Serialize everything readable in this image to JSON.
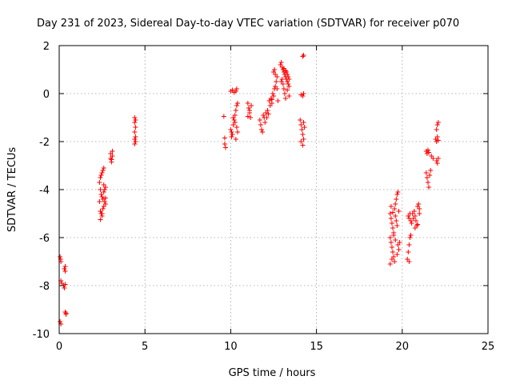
{
  "chart_data": {
    "type": "scatter",
    "title": "Day 231 of 2023, Sidereal Day-to-day VTEC variation (SDTVAR) for receiver p070",
    "xlabel": "GPS time / hours",
    "ylabel": "SDTVAR / TECUs",
    "xlim": [
      0,
      25
    ],
    "ylim": [
      -10,
      2
    ],
    "xticks": [
      "0",
      "5",
      "10",
      "15",
      "20",
      "25"
    ],
    "yticks": [
      "-10",
      "-8",
      "-6",
      "-4",
      "-2",
      "0",
      "2"
    ],
    "grid": true,
    "marker": "+",
    "color": "#ff0000",
    "series": [
      {
        "name": "p070",
        "points": [
          [
            0.05,
            -6.8
          ],
          [
            0.08,
            -6.9
          ],
          [
            0.1,
            -7.0
          ],
          [
            0.05,
            -9.5
          ],
          [
            0.1,
            -9.6
          ],
          [
            0.1,
            -7.8
          ],
          [
            0.15,
            -7.9
          ],
          [
            0.25,
            -8.0
          ],
          [
            0.3,
            -8.1
          ],
          [
            0.35,
            -7.95
          ],
          [
            0.3,
            -7.3
          ],
          [
            0.35,
            -7.4
          ],
          [
            0.35,
            -7.2
          ],
          [
            0.35,
            -9.1
          ],
          [
            0.4,
            -9.15
          ],
          [
            0.4,
            -9.2
          ],
          [
            2.35,
            -3.7
          ],
          [
            2.4,
            -3.5
          ],
          [
            2.45,
            -3.4
          ],
          [
            2.5,
            -3.3
          ],
          [
            2.55,
            -3.2
          ],
          [
            2.6,
            -3.1
          ],
          [
            2.4,
            -4.0
          ],
          [
            2.45,
            -4.2
          ],
          [
            2.5,
            -4.3
          ],
          [
            2.55,
            -4.4
          ],
          [
            2.6,
            -4.1
          ],
          [
            2.65,
            -4.0
          ],
          [
            2.7,
            -3.9
          ],
          [
            2.4,
            -4.9
          ],
          [
            2.45,
            -5.0
          ],
          [
            2.5,
            -5.1
          ],
          [
            2.55,
            -4.8
          ],
          [
            2.6,
            -4.7
          ],
          [
            2.65,
            -4.5
          ],
          [
            2.7,
            -4.6
          ],
          [
            2.4,
            -5.25
          ],
          [
            2.5,
            -5.0
          ],
          [
            2.35,
            -4.5
          ],
          [
            2.6,
            -3.8
          ],
          [
            2.7,
            -4.35
          ],
          [
            3.0,
            -2.5
          ],
          [
            3.0,
            -2.7
          ],
          [
            3.05,
            -2.85
          ],
          [
            3.1,
            -2.4
          ],
          [
            3.1,
            -2.6
          ],
          [
            3.05,
            -2.75
          ],
          [
            4.4,
            -1.0
          ],
          [
            4.4,
            -1.2
          ],
          [
            4.45,
            -1.4
          ],
          [
            4.4,
            -1.6
          ],
          [
            4.45,
            -1.8
          ],
          [
            4.4,
            -1.9
          ],
          [
            4.45,
            -2.0
          ],
          [
            4.4,
            -2.1
          ],
          [
            4.45,
            -1.1
          ],
          [
            9.6,
            -0.95
          ],
          [
            9.65,
            -1.85
          ],
          [
            9.65,
            -2.1
          ],
          [
            9.7,
            -2.25
          ],
          [
            10.0,
            -1.5
          ],
          [
            10.05,
            -1.6
          ],
          [
            10.1,
            -1.7
          ],
          [
            10.15,
            -1.3
          ],
          [
            10.2,
            -1.1
          ],
          [
            10.25,
            -0.9
          ],
          [
            10.3,
            -0.7
          ],
          [
            10.35,
            -0.5
          ],
          [
            10.4,
            -0.4
          ],
          [
            10.05,
            -1.8
          ],
          [
            10.15,
            -1.0
          ],
          [
            10.25,
            -1.2
          ],
          [
            10.35,
            -1.4
          ],
          [
            10.0,
            0.1
          ],
          [
            10.1,
            0.15
          ],
          [
            10.2,
            0.05
          ],
          [
            10.3,
            0.1
          ],
          [
            10.35,
            0.2
          ],
          [
            10.3,
            -1.9
          ],
          [
            10.4,
            -1.6
          ],
          [
            11.0,
            -0.4
          ],
          [
            11.05,
            -0.6
          ],
          [
            11.1,
            -0.8
          ],
          [
            11.15,
            -1.0
          ],
          [
            11.0,
            -0.95
          ],
          [
            11.2,
            -0.5
          ],
          [
            11.1,
            -0.7
          ],
          [
            11.7,
            -1.1
          ],
          [
            11.75,
            -1.3
          ],
          [
            11.8,
            -1.5
          ],
          [
            11.85,
            -1.6
          ],
          [
            11.9,
            -0.9
          ],
          [
            11.95,
            -1.0
          ],
          [
            12.0,
            -1.2
          ],
          [
            12.05,
            -0.8
          ],
          [
            12.1,
            -1.0
          ],
          [
            12.15,
            -0.7
          ],
          [
            12.2,
            -0.85
          ],
          [
            12.25,
            -0.3
          ],
          [
            12.3,
            -0.5
          ],
          [
            12.35,
            -0.2
          ],
          [
            12.4,
            -0.4
          ],
          [
            12.45,
            0.0
          ],
          [
            12.5,
            -0.1
          ],
          [
            12.55,
            0.2
          ],
          [
            12.6,
            0.3
          ],
          [
            12.65,
            0.5
          ],
          [
            12.7,
            0.7
          ],
          [
            12.5,
            0.9
          ],
          [
            12.55,
            1.0
          ],
          [
            12.6,
            0.8
          ],
          [
            12.7,
            0.2
          ],
          [
            12.75,
            -0.3
          ],
          [
            12.4,
            -0.25
          ],
          [
            12.9,
            1.2
          ],
          [
            12.95,
            1.3
          ],
          [
            13.0,
            1.1
          ],
          [
            13.05,
            1.0
          ],
          [
            13.1,
            0.9
          ],
          [
            13.15,
            0.8
          ],
          [
            13.2,
            0.7
          ],
          [
            13.25,
            0.6
          ],
          [
            13.3,
            0.5
          ],
          [
            13.35,
            0.4
          ],
          [
            13.4,
            0.3
          ],
          [
            13.0,
            0.6
          ],
          [
            13.05,
            0.4
          ],
          [
            13.1,
            0.2
          ],
          [
            13.15,
            0.0
          ],
          [
            13.2,
            -0.2
          ],
          [
            13.25,
            0.9
          ],
          [
            13.3,
            0.8
          ],
          [
            13.35,
            0.7
          ],
          [
            13.4,
            0.6
          ],
          [
            12.95,
            0.5
          ],
          [
            13.1,
            1.05
          ],
          [
            13.2,
            0.95
          ],
          [
            13.3,
            0.15
          ],
          [
            13.4,
            -0.1
          ],
          [
            14.2,
            1.55
          ],
          [
            14.25,
            1.6
          ],
          [
            14.1,
            -0.05
          ],
          [
            14.2,
            -0.1
          ],
          [
            14.25,
            0.0
          ],
          [
            14.05,
            -1.1
          ],
          [
            14.1,
            -1.3
          ],
          [
            14.15,
            -1.5
          ],
          [
            14.2,
            -1.7
          ],
          [
            14.25,
            -1.9
          ],
          [
            14.1,
            -2.0
          ],
          [
            14.2,
            -2.15
          ],
          [
            14.25,
            -1.2
          ],
          [
            14.3,
            -1.4
          ],
          [
            19.3,
            -6.0
          ],
          [
            19.35,
            -6.2
          ],
          [
            19.4,
            -6.4
          ],
          [
            19.45,
            -6.6
          ],
          [
            19.5,
            -6.8
          ],
          [
            19.55,
            -7.0
          ],
          [
            19.3,
            -5.0
          ],
          [
            19.35,
            -5.2
          ],
          [
            19.4,
            -5.4
          ],
          [
            19.45,
            -5.6
          ],
          [
            19.5,
            -5.8
          ],
          [
            19.55,
            -4.8
          ],
          [
            19.6,
            -4.6
          ],
          [
            19.65,
            -4.4
          ],
          [
            19.7,
            -4.2
          ],
          [
            19.75,
            -4.1
          ],
          [
            19.6,
            -5.1
          ],
          [
            19.65,
            -5.3
          ],
          [
            19.7,
            -5.5
          ],
          [
            19.75,
            -6.3
          ],
          [
            19.8,
            -6.5
          ],
          [
            19.85,
            -6.2
          ],
          [
            19.3,
            -7.1
          ],
          [
            19.4,
            -6.9
          ],
          [
            19.5,
            -5.9
          ],
          [
            19.6,
            -6.1
          ],
          [
            19.7,
            -6.7
          ],
          [
            19.8,
            -4.9
          ],
          [
            19.35,
            -4.7
          ],
          [
            19.45,
            -4.95
          ],
          [
            20.3,
            -6.9
          ],
          [
            20.35,
            -6.6
          ],
          [
            20.4,
            -6.3
          ],
          [
            20.45,
            -6.0
          ],
          [
            20.5,
            -5.9
          ],
          [
            20.35,
            -5.1
          ],
          [
            20.4,
            -5.2
          ],
          [
            20.45,
            -5.0
          ],
          [
            20.5,
            -5.3
          ],
          [
            20.55,
            -5.4
          ],
          [
            20.6,
            -5.0
          ],
          [
            20.65,
            -5.2
          ],
          [
            20.4,
            -7.0
          ],
          [
            20.7,
            -4.9
          ],
          [
            20.75,
            -5.1
          ],
          [
            20.8,
            -5.3
          ],
          [
            20.85,
            -5.5
          ],
          [
            20.9,
            -4.7
          ],
          [
            20.95,
            -4.6
          ],
          [
            21.0,
            -4.8
          ],
          [
            20.75,
            -5.6
          ],
          [
            20.9,
            -5.45
          ],
          [
            21.0,
            -5.0
          ],
          [
            21.4,
            -3.3
          ],
          [
            21.45,
            -3.5
          ],
          [
            21.5,
            -3.7
          ],
          [
            21.55,
            -3.9
          ],
          [
            21.4,
            -2.4
          ],
          [
            21.45,
            -2.5
          ],
          [
            21.5,
            -2.35
          ],
          [
            21.55,
            -2.45
          ],
          [
            21.6,
            -3.4
          ],
          [
            21.65,
            -3.2
          ],
          [
            21.7,
            -2.6
          ],
          [
            21.8,
            -2.7
          ],
          [
            21.95,
            -1.9
          ],
          [
            22.0,
            -2.0
          ],
          [
            22.05,
            -1.8
          ],
          [
            22.0,
            -1.5
          ],
          [
            22.05,
            -1.3
          ],
          [
            22.1,
            -1.2
          ],
          [
            22.0,
            -2.8
          ],
          [
            22.05,
            -2.9
          ],
          [
            22.1,
            -2.7
          ],
          [
            22.1,
            -1.95
          ]
        ]
      }
    ]
  }
}
